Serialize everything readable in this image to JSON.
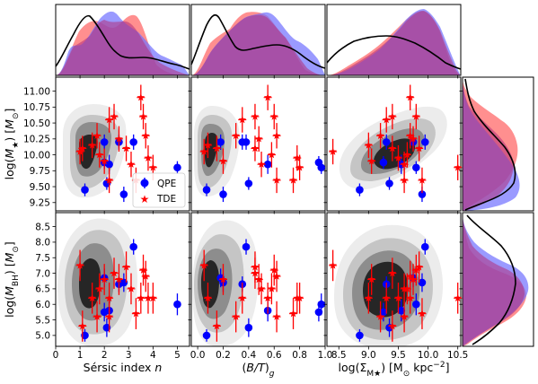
{
  "chart_data": {
    "type": "scatter",
    "layout": "corner plot: 3 columns (Sérsic index n, (B/T)_g, log(Σ_M*)) × 2 rows (log(M*), log(M_BH)) with marginal histograms top and right",
    "x_axes": [
      {
        "label": "Sérsic index n",
        "range": [
          0,
          5.5
        ],
        "ticks": [
          0,
          1,
          2,
          3,
          4,
          5
        ],
        "tick_labels": [
          "0",
          "1",
          "2",
          "3",
          "4",
          "5"
        ]
      },
      {
        "label": "(B/T)_g",
        "range": [
          -0.05,
          1.0
        ],
        "ticks": [
          0.0,
          0.2,
          0.4,
          0.6,
          0.8,
          1.0
        ],
        "tick_labels": [
          "0.0",
          "0.2",
          "0.4",
          "0.6",
          "0.8",
          "1.0"
        ]
      },
      {
        "label": "log(Σ_M*) [M_⊙ kpc^-2]",
        "range": [
          8.3,
          10.55
        ],
        "ticks": [
          8.5,
          9.0,
          9.5,
          10.0,
          10.5
        ],
        "tick_labels": [
          "8.5",
          "9.0",
          "9.5",
          "10.0",
          "10.5"
        ]
      }
    ],
    "y_axes": [
      {
        "label": "log(M*) [M_⊙]",
        "range": [
          9.12,
          11.22
        ],
        "ticks": [
          9.25,
          9.5,
          9.75,
          10.0,
          10.25,
          10.5,
          10.75,
          11.0
        ],
        "tick_labels": [
          "9.25",
          "9.50",
          "9.75",
          "10.00",
          "10.25",
          "10.50",
          "10.75",
          "11.00"
        ]
      },
      {
        "label": "log(M_BH) [M_⊙]",
        "range": [
          4.65,
          8.95
        ],
        "ticks": [
          5.0,
          5.5,
          6.0,
          6.5,
          7.0,
          7.5,
          8.0,
          8.5
        ],
        "tick_labels": [
          "5.0",
          "5.5",
          "6.0",
          "6.5",
          "7.0",
          "7.5",
          "8.0",
          "8.5"
        ]
      }
    ],
    "series": [
      {
        "name": "QPE",
        "marker": "circle",
        "color": "#0000ff",
        "points": [
          {
            "n": 1.2,
            "bt": 0.07,
            "sigma": 8.85,
            "mstar": 9.45,
            "mbh": 5.0,
            "err_mstar": 0.1,
            "err_mbh": 0.2
          },
          {
            "n": 2.0,
            "bt": 0.18,
            "sigma": 9.75,
            "mstar": 10.2,
            "mbh": 6.85,
            "err_mstar": 0.12,
            "err_mbh": 0.3
          },
          {
            "n": 2.2,
            "bt": 0.55,
            "sigma": 9.55,
            "mstar": 9.85,
            "mbh": 5.8,
            "err_mstar": 0.15,
            "err_mbh": 0.35
          },
          {
            "n": 2.6,
            "bt": 0.35,
            "sigma": 9.3,
            "mstar": 10.2,
            "mbh": 6.65,
            "err_mstar": 0.12,
            "err_mbh": 0.25
          },
          {
            "n": 3.2,
            "bt": 0.38,
            "sigma": 9.95,
            "mstar": 10.2,
            "mbh": 7.85,
            "err_mstar": 0.12,
            "err_mbh": 0.25
          },
          {
            "n": 2.8,
            "bt": 0.2,
            "sigma": 9.9,
            "mstar": 9.38,
            "mbh": 6.7,
            "err_mstar": 0.12,
            "err_mbh": 0.3
          },
          {
            "n": 2.0,
            "bt": 0.95,
            "sigma": 9.25,
            "mstar": 9.88,
            "mbh": 5.75,
            "err_mstar": 0.1,
            "err_mbh": 0.3
          },
          {
            "n": 5.0,
            "bt": 0.97,
            "sigma": 9.8,
            "mstar": 9.8,
            "mbh": 6.0,
            "err_mstar": 0.1,
            "err_mbh": 0.35
          },
          {
            "n": 2.1,
            "bt": 0.4,
            "sigma": 9.35,
            "mstar": 9.55,
            "mbh": 5.25,
            "err_mstar": 0.1,
            "err_mbh": 0.3
          }
        ]
      },
      {
        "name": "TDE",
        "marker": "star",
        "color": "#ff0000",
        "points": [
          {
            "n": 1.0,
            "bt": 0.05,
            "sigma": 8.4,
            "mstar": 10.05,
            "mbh": 7.25,
            "err_mstar": 0.2,
            "err_mbh": 0.5
          },
          {
            "n": 2.0,
            "bt": 0.2,
            "sigma": 9.05,
            "mstar": 9.9,
            "mbh": 6.8,
            "err_mstar": 0.2,
            "err_mbh": 0.5
          },
          {
            "n": 1.7,
            "bt": 0.3,
            "sigma": 9.2,
            "mstar": 10.3,
            "mbh": 5.6,
            "err_mstar": 0.2,
            "err_mbh": 0.5
          },
          {
            "n": 2.2,
            "bt": 0.35,
            "sigma": 9.3,
            "mstar": 10.55,
            "mbh": 6.2,
            "err_mstar": 0.2,
            "err_mbh": 0.5
          },
          {
            "n": 2.4,
            "bt": 0.45,
            "sigma": 9.4,
            "mstar": 10.6,
            "mbh": 7.0,
            "err_mstar": 0.2,
            "err_mbh": 0.5
          },
          {
            "n": 3.5,
            "bt": 0.55,
            "sigma": 9.7,
            "mstar": 10.9,
            "mbh": 6.2,
            "err_mstar": 0.2,
            "err_mbh": 0.5
          },
          {
            "n": 3.6,
            "bt": 0.6,
            "sigma": 9.8,
            "mstar": 10.6,
            "mbh": 7.1,
            "err_mstar": 0.2,
            "err_mbh": 0.5
          },
          {
            "n": 3.1,
            "bt": 0.5,
            "sigma": 9.6,
            "mstar": 9.85,
            "mbh": 6.5,
            "err_mstar": 0.2,
            "err_mbh": 0.5
          },
          {
            "n": 3.8,
            "bt": 0.78,
            "sigma": 9.5,
            "mstar": 9.95,
            "mbh": 6.2,
            "err_mstar": 0.2,
            "err_mbh": 0.5
          },
          {
            "n": 2.2,
            "bt": 0.62,
            "sigma": 9.6,
            "mstar": 9.6,
            "mbh": 5.6,
            "err_mstar": 0.2,
            "err_mbh": 0.5
          },
          {
            "n": 1.1,
            "bt": 0.15,
            "sigma": 9.4,
            "mstar": 10.1,
            "mbh": 5.3,
            "err_mstar": 0.2,
            "err_mbh": 0.5
          },
          {
            "n": 2.9,
            "bt": 0.45,
            "sigma": 9.85,
            "mstar": 10.1,
            "mbh": 7.2,
            "err_mstar": 0.2,
            "err_mbh": 0.5
          },
          {
            "n": 4.0,
            "bt": 0.8,
            "sigma": 10.5,
            "mstar": 9.8,
            "mbh": 6.2,
            "err_mstar": 0.2,
            "err_mbh": 0.5
          },
          {
            "n": 1.5,
            "bt": 0.08,
            "sigma": 9.0,
            "mstar": 10.15,
            "mbh": 6.2,
            "err_mstar": 0.2,
            "err_mbh": 0.5
          },
          {
            "n": 2.6,
            "bt": 0.48,
            "sigma": 9.75,
            "mstar": 10.25,
            "mbh": 6.8,
            "err_mstar": 0.2,
            "err_mbh": 0.5
          },
          {
            "n": 3.3,
            "bt": 0.75,
            "sigma": 9.9,
            "mstar": 9.6,
            "mbh": 5.7,
            "err_mstar": 0.2,
            "err_mbh": 0.5
          },
          {
            "n": 1.8,
            "bt": 0.58,
            "sigma": 9.65,
            "mstar": 10.0,
            "mbh": 6.5,
            "err_mstar": 0.2,
            "err_mbh": 0.5
          },
          {
            "n": 3.7,
            "bt": 0.62,
            "sigma": 9.7,
            "mstar": 10.3,
            "mbh": 6.9,
            "err_mstar": 0.2,
            "err_mbh": 0.5
          }
        ]
      }
    ],
    "legend": {
      "position": "lower-right of first scatter panel",
      "entries": [
        "QPE",
        "TDE"
      ]
    },
    "colors": {
      "qpe": "#0000ff",
      "tde": "#ff0000",
      "qpe_fill": "#6f6fff",
      "tde_fill": "#ff7373",
      "overlap_fill": "#b3307a",
      "contour_outer": "#ececec",
      "contour_mid": "#c5c5c5",
      "contour_inner2": "#8d8d8d",
      "contour_core": "#262626"
    }
  }
}
